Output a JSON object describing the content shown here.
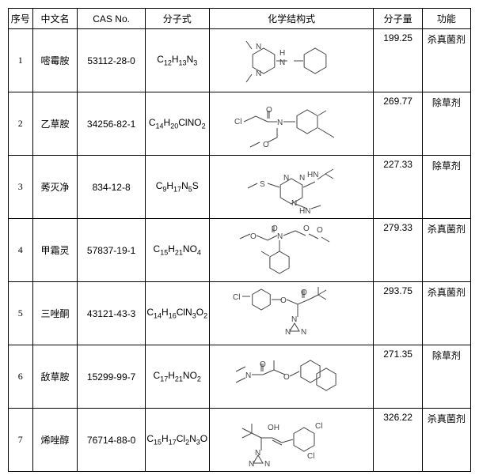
{
  "headers": {
    "idx": "序号",
    "name": "中文名",
    "cas": "CAS No.",
    "formula": "分子式",
    "struct": "化学结构式",
    "mw": "分子量",
    "func": "功能"
  },
  "rows": [
    {
      "idx": "1",
      "name": "嘧霉胺",
      "cas": "53112-28-0",
      "formula": "C<sub>12</sub>H<sub>13</sub>N<sub>3</sub>",
      "mw": "199.25",
      "func": "杀真菌剂"
    },
    {
      "idx": "2",
      "name": "乙草胺",
      "cas": "34256-82-1",
      "formula": "C<sub>14</sub>H<sub>20</sub>ClNO<sub>2</sub>",
      "mw": "269.77",
      "func": "除草剂"
    },
    {
      "idx": "3",
      "name": "莠灭净",
      "cas": "834-12-8",
      "formula": "C<sub>9</sub>H<sub>17</sub>N<sub>5</sub>S",
      "mw": "227.33",
      "func": "除草剂"
    },
    {
      "idx": "4",
      "name": "甲霜灵",
      "cas": "57837-19-1",
      "formula": "C<sub>15</sub>H<sub>21</sub>NO<sub>4</sub>",
      "mw": "279.33",
      "func": "杀真菌剂"
    },
    {
      "idx": "5",
      "name": "三唑酮",
      "cas": "43121-43-3",
      "formula": "C<sub>14</sub>H<sub>16</sub>ClN<sub>3</sub>O<sub>2</sub>",
      "mw": "293.75",
      "func": "杀真菌剂"
    },
    {
      "idx": "6",
      "name": "敌草胺",
      "cas": "15299-99-7",
      "formula": "C<sub>17</sub>H<sub>21</sub>NO<sub>2</sub>",
      "mw": "271.35",
      "func": "除草剂"
    },
    {
      "idx": "7",
      "name": "烯唑醇",
      "cas": "76714-88-0",
      "formula": "C<sub>15</sub>H<sub>17</sub>Cl<sub>2</sub>N<sub>3</sub>O",
      "mw": "326.22",
      "func": "杀真菌剂"
    }
  ],
  "style": {
    "stroke": "#444444",
    "strokeWidth": 1,
    "font": "10px Arial",
    "labelColor": "#444444"
  }
}
